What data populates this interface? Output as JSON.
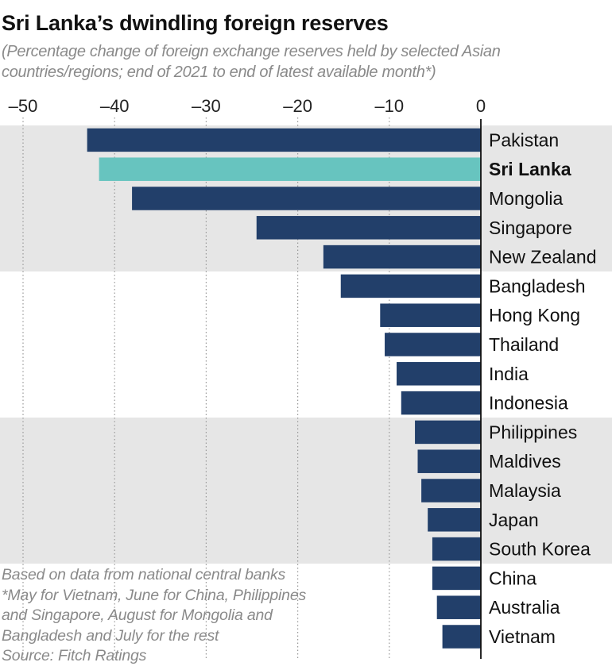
{
  "header": {
    "title": "Sri Lanka’s dwindling foreign reserves",
    "subtitle": "(Percentage change of foreign exchange reserves held by selected Asian countries/regions; end of 2021 to end of latest available month*)"
  },
  "footnotes": {
    "line1": "Based on data from national central banks",
    "line2": "*May for Vietnam, June for China, Philippines",
    "line3": "and Singapore, August for Mongolia and",
    "line4": "Bangladesh and July for the rest",
    "source": "Source: Fitch Ratings"
  },
  "colors": {
    "bar": "#223f6a",
    "highlight": "#67c4bf",
    "band": "#e6e6e6",
    "gridline": "#999999"
  },
  "chart_data": {
    "type": "bar",
    "orientation": "horizontal",
    "categories": [
      "Pakistan",
      "Sri Lanka",
      "Mongolia",
      "Singapore",
      "New Zealand",
      "Bangladesh",
      "Hong Kong",
      "Thailand",
      "India",
      "Indonesia",
      "Philippines",
      "Maldives",
      "Malaysia",
      "Japan",
      "South Korea",
      "China",
      "Australia",
      "Vietnam"
    ],
    "values": [
      -43,
      -41.7,
      -38.1,
      -24.5,
      -17.2,
      -15.3,
      -11,
      -10.5,
      -9.2,
      -8.7,
      -7.2,
      -6.9,
      -6.5,
      -5.8,
      -5.3,
      -5.3,
      -4.8,
      -4.2
    ],
    "highlight": "Sri Lanka",
    "xlim": [
      -50,
      0
    ],
    "xticks": [
      -50,
      -40,
      -30,
      -20,
      -10,
      0
    ],
    "xtick_labels": [
      "–50",
      "–40",
      "–30",
      "–20",
      "–10",
      "0"
    ],
    "axis_position": "top",
    "grid": "dotted vertical",
    "xlabel": "",
    "ylabel": ""
  }
}
